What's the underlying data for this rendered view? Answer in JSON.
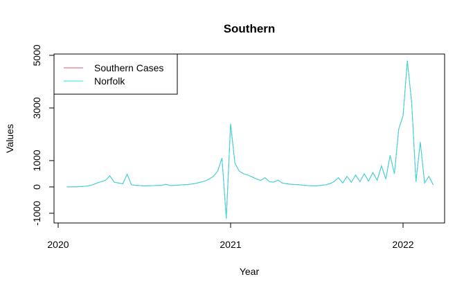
{
  "chart_data": {
    "type": "line",
    "title": "Southern",
    "x_label": "Year",
    "y_label": "Values",
    "x": [
      2020.05,
      2020.075,
      2020.1,
      2020.125,
      2020.15,
      2020.175,
      2020.2,
      2020.225,
      2020.25,
      2020.275,
      2020.3,
      2020.325,
      2020.35,
      2020.375,
      2020.4,
      2020.425,
      2020.45,
      2020.475,
      2020.5,
      2020.525,
      2020.55,
      2020.575,
      2020.6,
      2020.625,
      2020.65,
      2020.675,
      2020.7,
      2020.725,
      2020.75,
      2020.775,
      2020.8,
      2020.825,
      2020.85,
      2020.875,
      2020.9,
      2020.925,
      2020.95,
      2020.975,
      2021.0,
      2021.025,
      2021.05,
      2021.075,
      2021.1,
      2021.125,
      2021.15,
      2021.175,
      2021.2,
      2021.225,
      2021.25,
      2021.275,
      2021.3,
      2021.325,
      2021.35,
      2021.375,
      2021.4,
      2021.425,
      2021.45,
      2021.475,
      2021.5,
      2021.525,
      2021.55,
      2021.575,
      2021.6,
      2021.625,
      2021.65,
      2021.675,
      2021.7,
      2021.725,
      2021.75,
      2021.775,
      2021.8,
      2021.825,
      2021.85,
      2021.875,
      2021.9,
      2021.925,
      2021.95,
      2021.975,
      2022.0,
      2022.025,
      2022.05,
      2022.075,
      2022.1,
      2022.125,
      2022.15,
      2022.175
    ],
    "series": [
      {
        "name": "Southern Cases",
        "color": "#DF536B",
        "values": [
          0,
          2,
          5,
          10,
          20,
          40,
          80,
          150,
          200,
          250,
          420,
          180,
          150,
          120,
          480,
          80,
          60,
          50,
          40,
          45,
          50,
          55,
          60,
          100,
          50,
          60,
          70,
          80,
          90,
          110,
          140,
          180,
          220,
          300,
          400,
          600,
          1100,
          -1200,
          2400,
          900,
          600,
          500,
          450,
          380,
          300,
          250,
          350,
          200,
          180,
          260,
          150,
          120,
          100,
          90,
          80,
          60,
          50,
          45,
          40,
          60,
          80,
          120,
          200,
          350,
          150,
          400,
          180,
          450,
          200,
          500,
          220,
          550,
          250,
          800,
          300,
          1200,
          500,
          2200,
          2700,
          4800,
          3200,
          200,
          1700,
          150,
          400,
          80
        ]
      },
      {
        "name": "Norfolk",
        "color": "#28E2E5",
        "values": [
          0,
          2,
          5,
          10,
          20,
          40,
          80,
          150,
          200,
          250,
          420,
          180,
          150,
          120,
          480,
          80,
          60,
          50,
          40,
          45,
          50,
          55,
          60,
          100,
          50,
          60,
          70,
          80,
          90,
          110,
          140,
          180,
          220,
          300,
          400,
          600,
          1100,
          -1200,
          2400,
          900,
          600,
          500,
          450,
          380,
          300,
          250,
          350,
          200,
          180,
          260,
          150,
          120,
          100,
          90,
          80,
          60,
          50,
          45,
          40,
          60,
          80,
          120,
          200,
          350,
          150,
          400,
          180,
          450,
          200,
          500,
          220,
          550,
          250,
          800,
          300,
          1200,
          500,
          2200,
          2700,
          4800,
          3200,
          200,
          1700,
          150,
          400,
          80
        ]
      }
    ],
    "xlim": [
      2019.976,
      2022.241
    ],
    "xticks": [
      2020,
      2021,
      2022
    ],
    "ylim": [
      -1370,
      5050
    ],
    "yticks": [
      -1000,
      0,
      1000,
      3000,
      5000
    ],
    "legend": "top-left"
  }
}
